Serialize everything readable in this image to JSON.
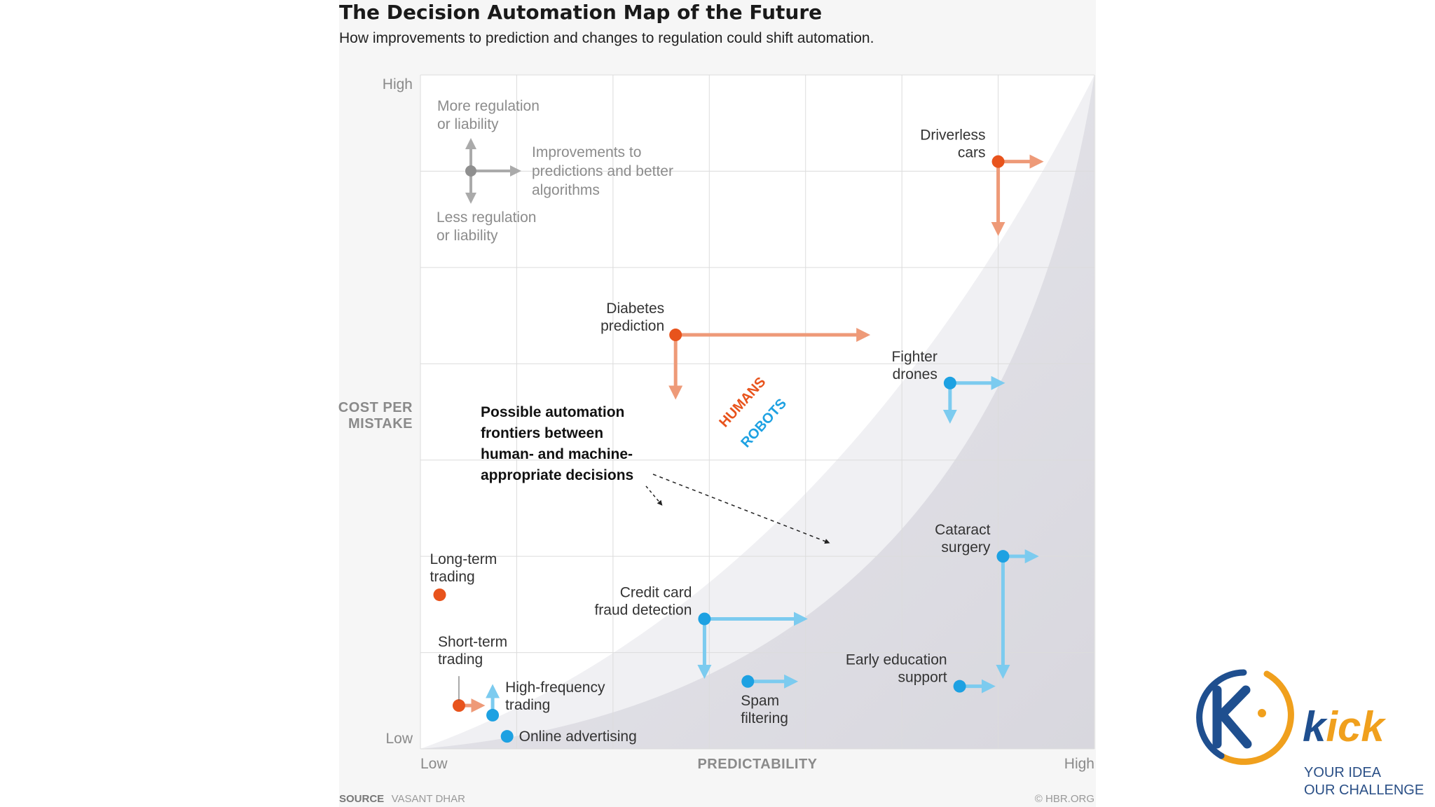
{
  "chart_data": {
    "type": "scatter",
    "title": "The Decision Automation Map of the Future",
    "subtitle": "How improvements to prediction and changes to regulation could shift automation.",
    "xlabel": "PREDICTABILITY",
    "ylabel": "COST PER MISTAKE",
    "xlim": [
      0,
      7
    ],
    "ylim": [
      0,
      7
    ],
    "x_low_label": "Low",
    "x_high_label": "High",
    "y_low_label": "Low",
    "y_high_label": "High",
    "grid": true,
    "frontier_labels": {
      "humans": "HUMANS",
      "robots": "ROBOTS"
    },
    "legend": {
      "up": "More regulation or liability",
      "right": "Improvements to predictions and better algorithms",
      "down": "Less regulation or liability"
    },
    "annotation": "Possible automation frontiers between human- and machine-appropriate decisions",
    "points": [
      {
        "name": "Driverless cars",
        "lines": [
          "Driverless",
          "cars"
        ],
        "x": 6.0,
        "y": 6.1,
        "group": "humans",
        "arrow_right_to": 6.4,
        "arrow_down_to": 5.4
      },
      {
        "name": "Diabetes prediction",
        "lines": [
          "Diabetes",
          "prediction"
        ],
        "x": 2.65,
        "y": 4.3,
        "group": "humans",
        "arrow_right_to": 4.6,
        "arrow_down_to": 3.7
      },
      {
        "name": "Long-term trading",
        "lines": [
          "Long-term",
          "trading"
        ],
        "x": 0.2,
        "y": 1.6,
        "group": "humans"
      },
      {
        "name": "Short-term trading",
        "lines": [
          "Short-term",
          "trading"
        ],
        "x": 0.4,
        "y": 0.45,
        "group": "humans",
        "arrow_right_to": 0.6
      },
      {
        "name": "Fighter drones",
        "lines": [
          "Fighter",
          "drones"
        ],
        "x": 5.5,
        "y": 3.8,
        "group": "robots",
        "arrow_right_to": 6.0,
        "arrow_down_to": 3.45
      },
      {
        "name": "Cataract surgery",
        "lines": [
          "Cataract",
          "surgery"
        ],
        "x": 6.05,
        "y": 2.0,
        "group": "robots",
        "arrow_right_to": 6.35,
        "arrow_down_to": 0.8
      },
      {
        "name": "Credit card fraud detection",
        "lines": [
          "Credit card",
          "fraud detection"
        ],
        "x": 2.95,
        "y": 1.35,
        "group": "robots",
        "arrow_right_to": 3.95,
        "arrow_down_to": 0.8
      },
      {
        "name": "Spam filtering",
        "lines": [
          "Spam",
          "filtering"
        ],
        "x": 3.4,
        "y": 0.7,
        "group": "robots",
        "arrow_right_to": 3.85
      },
      {
        "name": "Early education support",
        "lines": [
          "Early education",
          "support"
        ],
        "x": 5.6,
        "y": 0.65,
        "group": "robots",
        "arrow_right_to": 5.9
      },
      {
        "name": "High-frequency trading",
        "lines": [
          "High-frequency",
          "trading"
        ],
        "x": 0.75,
        "y": 0.35,
        "group": "robots",
        "arrow_up_to": 0.6
      },
      {
        "name": "Online advertising",
        "lines": [
          "Online advertising"
        ],
        "x": 0.9,
        "y": 0.13,
        "group": "robots"
      }
    ],
    "source_label": "SOURCE",
    "source": "VASANT DHAR",
    "credit": "© HBR.ORG"
  },
  "colors": {
    "humans": "#e8531c",
    "humans_arrow": "#ee9a78",
    "robots": "#1da1e2",
    "robots_arrow": "#7ccbef",
    "legend_gray": "#aaaaaa",
    "kick_orange": "#f0a01d",
    "kick_blue": "#1f4f8f"
  },
  "brand": {
    "name": "kick",
    "tagline_line1": "YOUR IDEA",
    "tagline_line2": "OUR CHALLENGE"
  }
}
